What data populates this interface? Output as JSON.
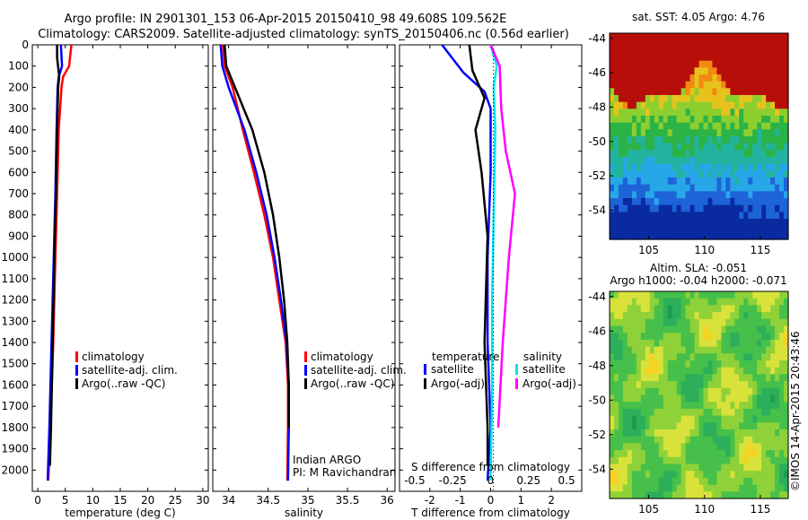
{
  "header": {
    "line1": "Argo profile: IN 2901301_153 06-Apr-2015 20150410_98 49.608S 109.562E",
    "line2": "Climatology: CARS2009. Satellite-adjusted climatology: synTS_20150406.nc (0.56d earlier)"
  },
  "colors": {
    "climatology": "#ff0000",
    "satellite": "#0000ff",
    "argo": "#000000",
    "sat_salinity": "#00e5ee",
    "argo_salinity": "#ff00ff"
  },
  "chart_data": [
    {
      "type": "line",
      "panel": "temperature",
      "xlabel": "temperature (deg C)",
      "ylabel": "",
      "xlim": [
        -1,
        31
      ],
      "ylim": [
        2100,
        0
      ],
      "xticks": [
        "0",
        "5",
        "10",
        "15",
        "20",
        "25",
        "30"
      ],
      "yticks": [
        "0",
        "100",
        "200",
        "300",
        "400",
        "500",
        "600",
        "700",
        "800",
        "900",
        "1000",
        "1100",
        "1200",
        "1300",
        "1400",
        "1500",
        "1600",
        "1700",
        "1800",
        "1900",
        "2000"
      ],
      "legend": [
        "climatology",
        "satellite-adj. clim.",
        "Argo(..raw -QC)"
      ],
      "series": [
        {
          "name": "climatology",
          "color": "#ff0000",
          "x": [
            6.1,
            5.7,
            4.6,
            4.3,
            3.8,
            3.5,
            3.2,
            2.8,
            2.3,
            1.9
          ],
          "y": [
            0,
            100,
            150,
            200,
            400,
            700,
            1000,
            1400,
            1800,
            2050
          ]
        },
        {
          "name": "satellite-adj. clim.",
          "color": "#0000ff",
          "x": [
            4.2,
            4.4,
            3.8,
            3.6,
            3.4,
            3.2,
            2.9,
            2.5,
            2.1,
            1.8
          ],
          "y": [
            0,
            100,
            150,
            200,
            400,
            700,
            1000,
            1400,
            1800,
            2050
          ]
        },
        {
          "name": "Argo(..raw -QC)",
          "color": "#000000",
          "x": [
            3.5,
            3.5,
            3.9,
            3.7,
            3.5,
            3.3,
            3.0,
            2.7,
            2.4,
            2.2
          ],
          "y": [
            0,
            60,
            150,
            200,
            400,
            700,
            1000,
            1400,
            1800,
            1980
          ]
        }
      ]
    },
    {
      "type": "line",
      "panel": "salinity",
      "xlabel": "salinity",
      "xlim": [
        33.8,
        36.1
      ],
      "ylim": [
        2100,
        0
      ],
      "xticks": [
        "34",
        "34.5",
        "35",
        "35.5",
        "36"
      ],
      "legend": [
        "climatology",
        "satellite-adj. clim.",
        "Argo(..raw -QC)"
      ],
      "annotation": [
        "Indian ARGO",
        "PI: M Ravichandran"
      ],
      "series": [
        {
          "name": "climatology",
          "color": "#ff0000",
          "x": [
            33.93,
            33.95,
            34.05,
            34.18,
            34.32,
            34.45,
            34.56,
            34.64,
            34.72,
            34.75,
            34.75,
            34.74
          ],
          "y": [
            0,
            100,
            200,
            400,
            600,
            800,
            1000,
            1200,
            1400,
            1600,
            1800,
            2050
          ]
        },
        {
          "name": "satellite-adj. clim.",
          "color": "#0000ff",
          "x": [
            33.9,
            33.92,
            34.0,
            34.2,
            34.35,
            34.48,
            34.58,
            34.66,
            34.73,
            34.76,
            34.76,
            34.75
          ],
          "y": [
            0,
            100,
            200,
            400,
            600,
            800,
            1000,
            1200,
            1400,
            1600,
            1800,
            2050
          ]
        },
        {
          "name": "Argo(..raw -QC)",
          "color": "#000000",
          "x": [
            33.95,
            33.97,
            34.08,
            34.3,
            34.45,
            34.56,
            34.64,
            34.7,
            34.74,
            34.76,
            34.76
          ],
          "y": [
            0,
            100,
            200,
            400,
            600,
            800,
            1000,
            1200,
            1400,
            1600,
            1800
          ]
        }
      ]
    },
    {
      "type": "line",
      "panel": "difference",
      "xlabel": "T difference from climatology",
      "xlabel_top": "S difference from climatology",
      "xlim": [
        -3,
        3
      ],
      "ylim": [
        2100,
        0
      ],
      "xticks": [
        "-2",
        "-1",
        "0",
        "1",
        "2"
      ],
      "xticks_top": [
        "-0.5",
        "-0.25",
        "0",
        "0.25",
        "0.5"
      ],
      "legend_title_left": "temperature",
      "legend_title_right": "salinity",
      "legend": [
        "satellite",
        "Argo(-adj)",
        "satellite",
        "Argo(-adj)"
      ],
      "series": [
        {
          "name": "satellite",
          "color": "#0000ff",
          "x": [
            -1.6,
            -0.9,
            -0.2,
            0.0,
            0.0,
            -0.1,
            -0.1,
            0.0,
            -0.1
          ],
          "y": [
            0,
            130,
            220,
            300,
            600,
            1000,
            1400,
            1800,
            2050
          ]
        },
        {
          "name": "Argo(-adj)",
          "color": "#000000",
          "x": [
            -0.7,
            -0.6,
            -0.2,
            -0.5,
            -0.3,
            -0.1,
            -0.2,
            -0.1,
            -0.1
          ],
          "y": [
            0,
            120,
            250,
            400,
            600,
            900,
            1400,
            1800,
            1980
          ]
        },
        {
          "name": "satellite",
          "color": "#00e5ee",
          "x": [
            0.0,
            0.04,
            0.02,
            0.03,
            0.02,
            0.01,
            0.01,
            0.0
          ],
          "y": [
            0,
            100,
            200,
            400,
            800,
            1200,
            1600,
            2050
          ]
        },
        {
          "name": "Argo(-adj)",
          "color": "#ff00ff",
          "x": [
            0.0,
            0.06,
            0.07,
            0.1,
            0.16,
            0.12,
            0.08,
            0.05
          ],
          "y": [
            0,
            100,
            300,
            500,
            700,
            1000,
            1400,
            1800
          ]
        }
      ]
    },
    {
      "type": "heatmap",
      "panel": "sst-map",
      "title": "sat. SST: 4.05 Argo: 4.76",
      "xlim": [
        101.5,
        117.5
      ],
      "ylim": [
        -55.7,
        -43.7
      ],
      "xticks": [
        "105",
        "110",
        "115"
      ],
      "yticks": [
        "-44",
        "-46",
        "-48",
        "-50",
        "-52",
        "-54"
      ],
      "palette": [
        "#0a2aa0",
        "#1e63d8",
        "#27a6e8",
        "#22b3a0",
        "#2cb346",
        "#8ccf2e",
        "#e8c21c",
        "#f08a10",
        "#b80e0a"
      ]
    },
    {
      "type": "heatmap",
      "panel": "sla-map",
      "title": "Altim. SLA: -0.051",
      "subtitle": "Argo h1000: -0.04 h2000: -0.071",
      "xlim": [
        101.5,
        117.5
      ],
      "ylim": [
        -55.7,
        -43.7
      ],
      "xticks": [
        "105",
        "110",
        "115"
      ],
      "yticks": [
        "-44",
        "-46",
        "-48",
        "-50",
        "-52",
        "-54"
      ],
      "palette": [
        "#1e9c4e",
        "#2cae5a",
        "#46c04a",
        "#8ed138",
        "#d8e23a",
        "#f5d323",
        "#f0a817"
      ]
    }
  ],
  "footer": {
    "credit": "©IMOS 14-Apr-2015 20:43:46"
  }
}
